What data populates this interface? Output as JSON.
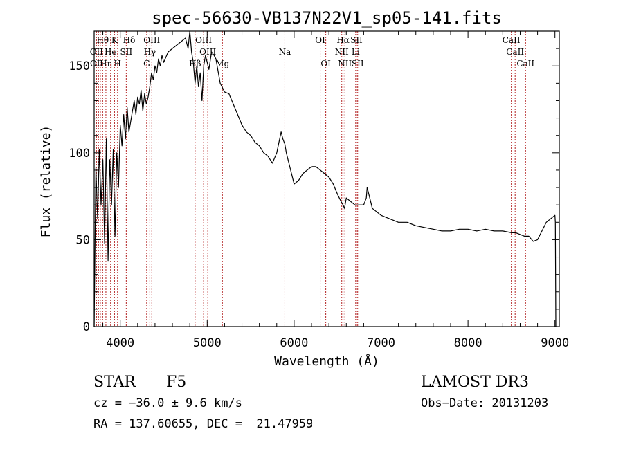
{
  "chart_data": {
    "type": "line",
    "title": "spec-56630-VB137N22V1_sp05-141.fits",
    "xlabel": "Wavelength (Å)",
    "ylabel": "Flux (relative)",
    "xlim": [
      3700,
      9050
    ],
    "ylim": [
      0,
      170
    ],
    "xticks": [
      4000,
      5000,
      6000,
      7000,
      8000,
      9000
    ],
    "yticks": [
      0,
      50,
      100,
      150
    ],
    "x": [
      3700,
      3720,
      3740,
      3760,
      3780,
      3800,
      3820,
      3840,
      3860,
      3880,
      3900,
      3920,
      3940,
      3960,
      3980,
      4000,
      4020,
      4040,
      4060,
      4080,
      4100,
      4120,
      4140,
      4160,
      4180,
      4200,
      4220,
      4240,
      4260,
      4280,
      4300,
      4320,
      4340,
      4360,
      4380,
      4400,
      4420,
      4440,
      4460,
      4480,
      4500,
      4550,
      4600,
      4650,
      4700,
      4750,
      4780,
      4800,
      4820,
      4840,
      4861,
      4880,
      4900,
      4920,
      4940,
      4960,
      4980,
      5000,
      5020,
      5050,
      5080,
      5100,
      5150,
      5200,
      5250,
      5300,
      5350,
      5400,
      5450,
      5500,
      5550,
      5600,
      5650,
      5700,
      5750,
      5800,
      5850,
      5870,
      5893,
      5910,
      5950,
      6000,
      6050,
      6100,
      6150,
      6200,
      6250,
      6300,
      6350,
      6400,
      6450,
      6500,
      6540,
      6563,
      6580,
      6600,
      6650,
      6700,
      6750,
      6800,
      6830,
      6840,
      6850,
      6900,
      6950,
      7000,
      7100,
      7200,
      7300,
      7400,
      7500,
      7600,
      7700,
      7800,
      7900,
      8000,
      8100,
      8200,
      8300,
      8400,
      8500,
      8550,
      8600,
      8650,
      8700,
      8750,
      8800,
      8850,
      8900,
      8950,
      9000,
      9005,
      9010
    ],
    "series": [
      {
        "name": "flux",
        "values": [
          0,
          92,
          62,
          102,
          70,
          96,
          48,
          108,
          38,
          96,
          70,
          102,
          52,
          100,
          80,
          116,
          104,
          122,
          108,
          126,
          112,
          118,
          124,
          130,
          122,
          132,
          128,
          136,
          124,
          134,
          128,
          132,
          138,
          146,
          142,
          150,
          146,
          154,
          150,
          156,
          152,
          158,
          160,
          162,
          164,
          166,
          160,
          170,
          158,
          152,
          140,
          150,
          138,
          146,
          130,
          150,
          156,
          152,
          148,
          158,
          156,
          154,
          140,
          135,
          134,
          128,
          122,
          116,
          112,
          110,
          106,
          104,
          100,
          98,
          94,
          100,
          112,
          108,
          105,
          100,
          92,
          82,
          84,
          88,
          90,
          92,
          92,
          90,
          88,
          86,
          82,
          76,
          72,
          70,
          68,
          74,
          72,
          70,
          70,
          70,
          74,
          80,
          78,
          68,
          66,
          64,
          62,
          60,
          60,
          58,
          57,
          56,
          55,
          55,
          56,
          56,
          55,
          56,
          55,
          55,
          54,
          54,
          53,
          52,
          52,
          49,
          50,
          55,
          60,
          62,
          64,
          60,
          0
        ]
      }
    ],
    "line_labels": [
      {
        "label": "Hθ",
        "x": 3798,
        "row": 1
      },
      {
        "label": "OII",
        "x": 3727,
        "row": 2
      },
      {
        "label": "OII",
        "x": 3729,
        "row": 3
      },
      {
        "label": "Hη",
        "x": 3835,
        "row": 3
      },
      {
        "label": "K",
        "x": 3934,
        "row": 1
      },
      {
        "label": "H",
        "x": 3969,
        "row": 3
      },
      {
        "label": "He",
        "x": 3889,
        "row": 2
      },
      {
        "label": "SII",
        "x": 4069,
        "row": 2
      },
      {
        "label": "Hδ",
        "x": 4102,
        "row": 1
      },
      {
        "label": "OIII",
        "x": 4363,
        "row": 1
      },
      {
        "label": "Hγ",
        "x": 4340,
        "row": 2
      },
      {
        "label": "G",
        "x": 4304,
        "row": 3
      },
      {
        "label": "Hβ",
        "x": 4861,
        "row": 3
      },
      {
        "label": "OIII",
        "x": 4959,
        "row": 1
      },
      {
        "label": "OIII",
        "x": 5007,
        "row": 2
      },
      {
        "label": "Mg",
        "x": 5175,
        "row": 3
      },
      {
        "label": "Na",
        "x": 5893,
        "row": 2
      },
      {
        "label": "OI",
        "x": 6300,
        "row": 1
      },
      {
        "label": "OI",
        "x": 6364,
        "row": 3
      },
      {
        "label": "Hα",
        "x": 6563,
        "row": 1
      },
      {
        "label": "NII",
        "x": 6548,
        "row": 2
      },
      {
        "label": "NII",
        "x": 6584,
        "row": 3
      },
      {
        "label": "SII",
        "x": 6717,
        "row": 1
      },
      {
        "label": "Li",
        "x": 6708,
        "row": 2
      },
      {
        "label": "SII",
        "x": 6731,
        "row": 3
      },
      {
        "label": "CaII",
        "x": 8498,
        "row": 1
      },
      {
        "label": "CaII",
        "x": 8542,
        "row": 2
      },
      {
        "label": "CaII",
        "x": 8662,
        "row": 3
      }
    ],
    "line_markers_x": [
      3727,
      3750,
      3771,
      3798,
      3835,
      3889,
      3934,
      3969,
      4069,
      4102,
      4304,
      4340,
      4363,
      4861,
      4959,
      5007,
      5175,
      5893,
      6300,
      6364,
      6548,
      6563,
      6584,
      6708,
      6717,
      6731,
      8498,
      8542,
      8662
    ],
    "marker_color": "#b22222"
  },
  "info": {
    "object_class": "STAR",
    "subclass": "F5",
    "survey": "LAMOST DR3",
    "cz": "cz = −36.0 ± 9.6 km/s",
    "obs_date": "Obs−Date: 20131203",
    "coords": "RA = 137.60655, DEC =  21.47959"
  }
}
